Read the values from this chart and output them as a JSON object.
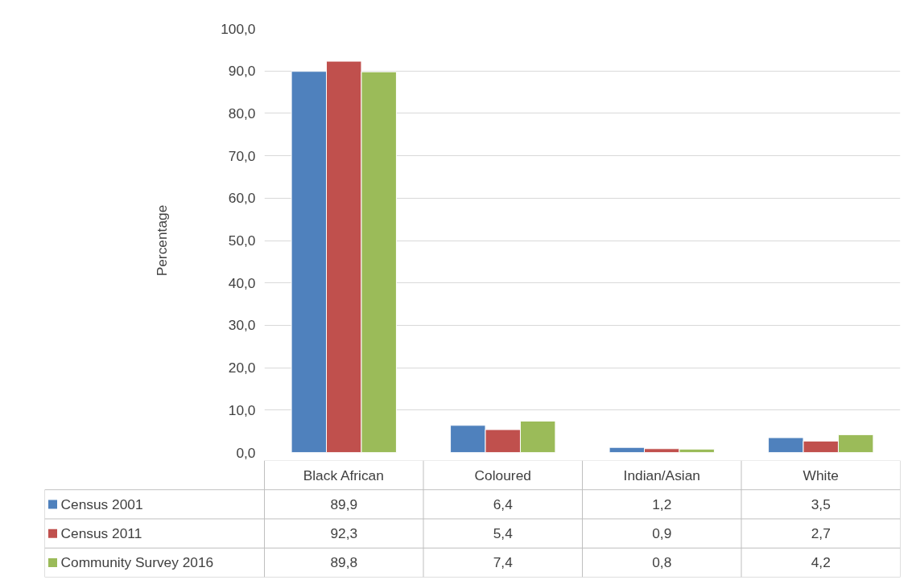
{
  "chart_data": {
    "type": "bar",
    "ylabel": "Percentage",
    "categories": [
      "Black African",
      "Coloured",
      "Indian/Asian",
      "White"
    ],
    "series": [
      {
        "name": "Census 2001",
        "color": "#4f81bd",
        "values": [
          89.9,
          6.4,
          1.2,
          3.5
        ],
        "value_labels": [
          "89,9",
          "6,4",
          "1,2",
          "3,5"
        ]
      },
      {
        "name": "Census 2011",
        "color": "#c0504d",
        "values": [
          92.3,
          5.4,
          0.9,
          2.7
        ],
        "value_labels": [
          "92,3",
          "5,4",
          "0,9",
          "2,7"
        ]
      },
      {
        "name": "Community Survey 2016",
        "color": "#9bbb59",
        "values": [
          89.8,
          7.4,
          0.8,
          4.2
        ],
        "value_labels": [
          "89,8",
          "7,4",
          "0,8",
          "4,2"
        ]
      }
    ],
    "ylim": [
      0,
      100
    ],
    "yticks": [
      {
        "value": 0,
        "label": "0,0"
      },
      {
        "value": 10,
        "label": "10,0"
      },
      {
        "value": 20,
        "label": "20,0"
      },
      {
        "value": 30,
        "label": "30,0"
      },
      {
        "value": 40,
        "label": "40,0"
      },
      {
        "value": 50,
        "label": "50,0"
      },
      {
        "value": 60,
        "label": "60,0"
      },
      {
        "value": 70,
        "label": "70,0"
      },
      {
        "value": 80,
        "label": "80,0"
      },
      {
        "value": 90,
        "label": "90,0"
      },
      {
        "value": 100,
        "label": "100,0"
      }
    ],
    "grid": "y",
    "legend": "bottom"
  }
}
